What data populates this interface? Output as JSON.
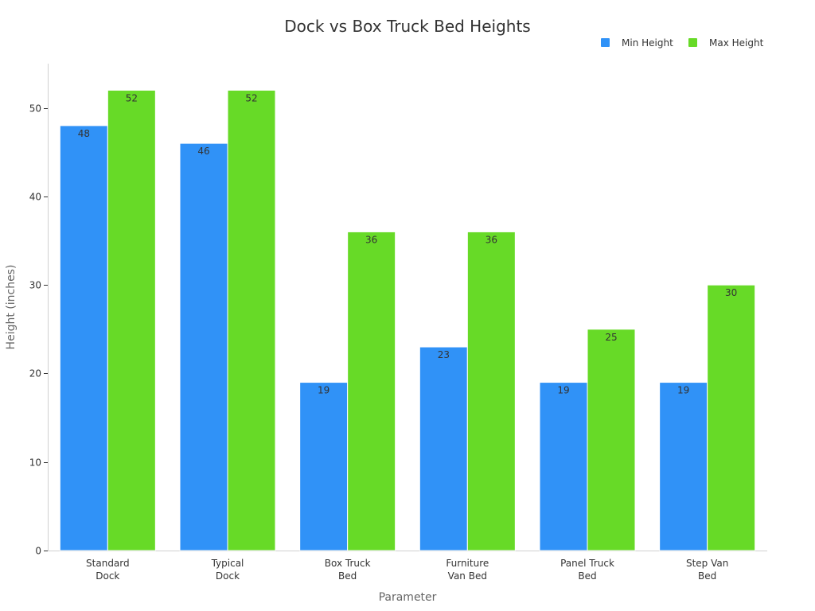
{
  "chart_data": {
    "type": "bar",
    "title": "Dock vs Box Truck Bed Heights",
    "xlabel": "Parameter",
    "ylabel": "Height (inches)",
    "categories": [
      [
        "Standard",
        "Dock"
      ],
      [
        "Typical",
        "Dock"
      ],
      [
        "Box Truck",
        "Bed"
      ],
      [
        "Furniture",
        "Van Bed"
      ],
      [
        "Panel Truck",
        "Bed"
      ],
      [
        "Step Van",
        "Bed"
      ]
    ],
    "series": [
      {
        "name": "Min Height",
        "color": "#3092f7",
        "values": [
          48,
          46,
          19,
          23,
          19,
          19
        ]
      },
      {
        "name": "Max Height",
        "color": "#67da27",
        "values": [
          52,
          52,
          36,
          36,
          25,
          30
        ]
      }
    ],
    "ylim": [
      0,
      55
    ],
    "yticks": [
      0,
      10,
      20,
      30,
      40,
      50
    ],
    "grid": false,
    "legend_position": "top-right",
    "data_labels": true
  }
}
